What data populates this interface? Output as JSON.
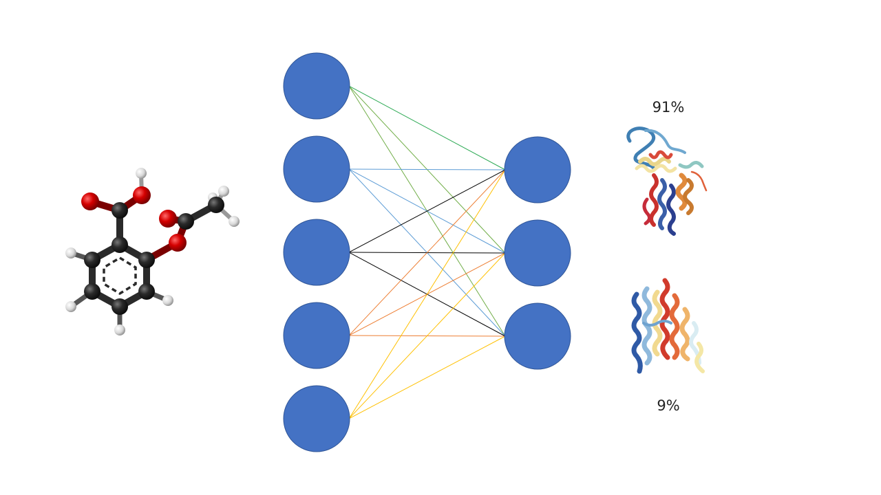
{
  "colors": {
    "node_fill": "#4472C4",
    "node_stroke": "#2F5597",
    "edge_green": "#2EAA55",
    "edge_olive": "#70AD47",
    "edge_blue": "#5B9BD5",
    "edge_black": "#000000",
    "edge_orange": "#ED7D31",
    "edge_yellow": "#FFC000"
  },
  "network": {
    "input_layer_size": 5,
    "output_layer_size": 3,
    "connections": [
      {
        "from": 0,
        "to": 0,
        "color": "edge_green"
      },
      {
        "from": 0,
        "to": 1,
        "color": "edge_olive"
      },
      {
        "from": 0,
        "to": 2,
        "color": "edge_olive"
      },
      {
        "from": 1,
        "to": 0,
        "color": "edge_blue"
      },
      {
        "from": 1,
        "to": 1,
        "color": "edge_blue"
      },
      {
        "from": 1,
        "to": 2,
        "color": "edge_blue"
      },
      {
        "from": 2,
        "to": 0,
        "color": "edge_black"
      },
      {
        "from": 2,
        "to": 1,
        "color": "edge_black"
      },
      {
        "from": 2,
        "to": 2,
        "color": "edge_black"
      },
      {
        "from": 3,
        "to": 0,
        "color": "edge_orange"
      },
      {
        "from": 3,
        "to": 1,
        "color": "edge_orange"
      },
      {
        "from": 3,
        "to": 2,
        "color": "edge_orange"
      },
      {
        "from": 4,
        "to": 0,
        "color": "edge_yellow"
      },
      {
        "from": 4,
        "to": 1,
        "color": "edge_yellow"
      },
      {
        "from": 4,
        "to": 2,
        "color": "edge_yellow"
      }
    ]
  },
  "molecule": {
    "icon": "aspirin-ball-and-stick-model"
  },
  "outputs": [
    {
      "label": "91%",
      "icon": "protein-ribbon-structure-1"
    },
    {
      "label": "9%",
      "icon": "protein-ribbon-structure-2"
    }
  ]
}
